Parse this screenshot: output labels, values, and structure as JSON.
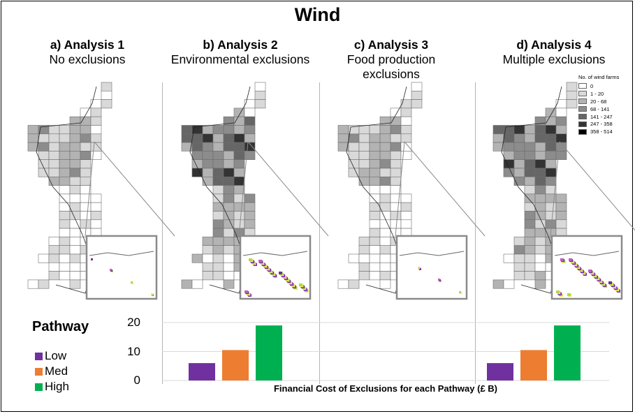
{
  "title": "Wind",
  "panels": [
    {
      "title": "a) Analysis 1",
      "subtitle": "No exclusions"
    },
    {
      "title": "b) Analysis 2",
      "subtitle": "Environmental exclusions"
    },
    {
      "title": "c) Analysis 3",
      "subtitle": "Food production exclusions"
    },
    {
      "title": "d) Analysis 4",
      "subtitle": "Multiple exclusions"
    }
  ],
  "map_legend": {
    "title": "No. of wind farms",
    "items": [
      {
        "label": "0",
        "color": "#ffffff"
      },
      {
        "label": "1 - 20",
        "color": "#d9d9d9"
      },
      {
        "label": "20 - 68",
        "color": "#b3b3b3"
      },
      {
        "label": "68 - 141",
        "color": "#8c8c8c"
      },
      {
        "label": "141 - 247",
        "color": "#666666"
      },
      {
        "label": "247 - 358",
        "color": "#333333"
      },
      {
        "label": "358 - 514",
        "color": "#000000"
      }
    ]
  },
  "pathway_legend": {
    "title": "Pathway",
    "items": [
      {
        "label": "Low",
        "color": "#7030a0"
      },
      {
        "label": "Med",
        "color": "#ed7d31"
      },
      {
        "label": "High",
        "color": "#00b050"
      }
    ]
  },
  "chart_data": {
    "type": "bar",
    "title": "",
    "xlabel": "Financial Cost of Exclusions for each Pathway (£ B)",
    "ylabel": "",
    "ylim": [
      0,
      20
    ],
    "yticks": [
      0,
      10,
      20
    ],
    "grid": true,
    "categories": [
      "b) Analysis 2",
      "c) Analysis 3",
      "d) Analysis 4"
    ],
    "series": [
      {
        "name": "Low",
        "values": [
          6.0,
          0,
          6.0
        ]
      },
      {
        "name": "Med",
        "values": [
          10.5,
          0,
          10.5
        ]
      },
      {
        "name": "High",
        "values": [
          19.0,
          0,
          19.0
        ]
      }
    ]
  }
}
